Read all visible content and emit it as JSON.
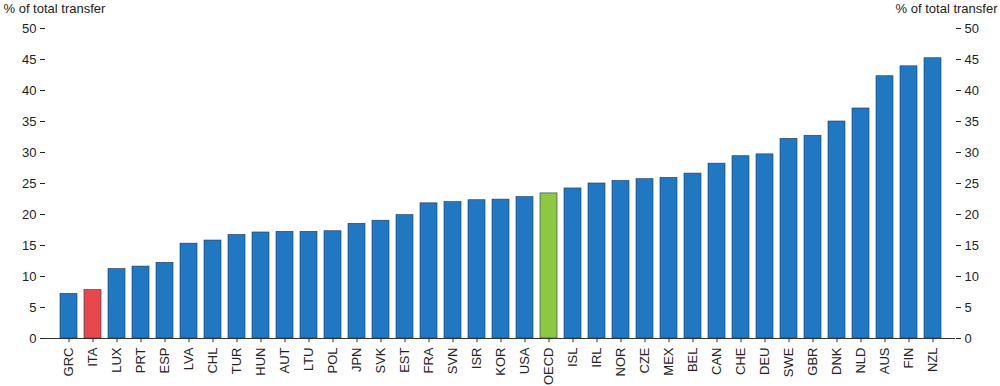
{
  "chart_data": {
    "type": "bar",
    "ylabel": "% of total transfer",
    "categories": [
      "GRC",
      "ITA",
      "LUX",
      "PRT",
      "ESP",
      "LVA",
      "CHL",
      "TUR",
      "HUN",
      "AUT",
      "LTU",
      "POL",
      "JPN",
      "SVK",
      "EST",
      "FRA",
      "SVN",
      "ISR",
      "KOR",
      "USA",
      "OECD",
      "ISL",
      "IRL",
      "NOR",
      "CZE",
      "MEX",
      "BEL",
      "CAN",
      "CHE",
      "DEU",
      "SWE",
      "GBR",
      "DNK",
      "NLD",
      "AUS",
      "FIN",
      "NZL"
    ],
    "values": [
      7.2,
      7.8,
      11.2,
      11.6,
      12.2,
      15.3,
      15.8,
      16.7,
      17.1,
      17.2,
      17.2,
      17.3,
      18.5,
      19.0,
      19.9,
      21.8,
      22.0,
      22.3,
      22.4,
      22.8,
      23.4,
      24.2,
      25.0,
      25.4,
      25.7,
      25.9,
      26.6,
      28.2,
      29.4,
      29.7,
      32.2,
      32.7,
      35.0,
      37.1,
      42.3,
      43.9,
      45.2
    ],
    "colors": [
      "#1f78c1",
      "#e8474c",
      "#1f78c1",
      "#1f78c1",
      "#1f78c1",
      "#1f78c1",
      "#1f78c1",
      "#1f78c1",
      "#1f78c1",
      "#1f78c1",
      "#1f78c1",
      "#1f78c1",
      "#1f78c1",
      "#1f78c1",
      "#1f78c1",
      "#1f78c1",
      "#1f78c1",
      "#1f78c1",
      "#1f78c1",
      "#1f78c1",
      "#8cc841",
      "#1f78c1",
      "#1f78c1",
      "#1f78c1",
      "#1f78c1",
      "#1f78c1",
      "#1f78c1",
      "#1f78c1",
      "#1f78c1",
      "#1f78c1",
      "#1f78c1",
      "#1f78c1",
      "#1f78c1",
      "#1f78c1",
      "#1f78c1",
      "#1f78c1",
      "#1f78c1"
    ],
    "ylim": [
      0,
      50
    ],
    "yticks": [
      0,
      5,
      10,
      15,
      20,
      25,
      30,
      35,
      40,
      45,
      50
    ],
    "grid": false
  }
}
